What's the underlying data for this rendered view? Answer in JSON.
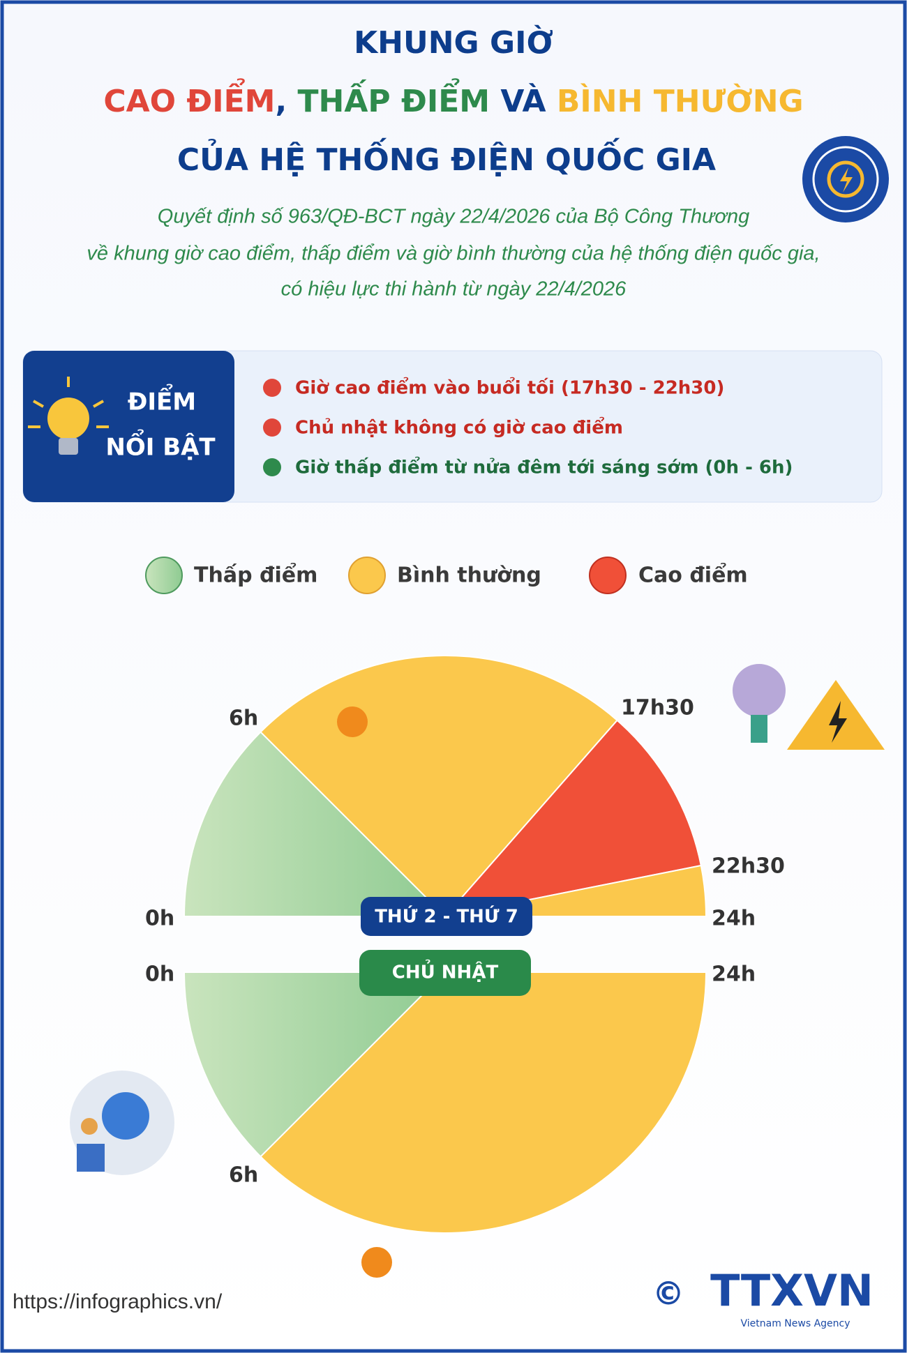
{
  "header": {
    "title_line1": "KHUNG GIỜ",
    "title_line2": [
      "CAO ĐIỂM",
      ", ",
      "THẤP ĐIỂM",
      " VÀ ",
      "BÌNH THƯỜNG"
    ],
    "title_line3": "CỦA HỆ THỐNG ĐIỆN QUỐC GIA",
    "subtitle": [
      "Quyết định số 963/QĐ-BCT ngày 22/4/2026 của Bộ Công Thương",
      "về khung giờ cao điểm, thấp điểm và giờ bình thường của hệ thống điện quốc gia,",
      "có hiệu lực thi hành từ ngày 22/4/2026"
    ]
  },
  "highlights": {
    "label_lines": [
      "ĐIỂM",
      "NỔI BẬT"
    ],
    "items": [
      "Giờ cao điểm vào buổi tối (17h30 - 22h30)",
      "Chủ nhật không có giờ cao điểm",
      "Giờ thấp điểm từ nửa đêm tới sáng sớm (0h - 6h)"
    ]
  },
  "legend": [
    "Thấp điểm",
    "Bình thường",
    "Cao điểm"
  ],
  "weekday_chart": {
    "label": "THỨ 2 - THỨ 7",
    "hour_labels": [
      "0h",
      "6h",
      "17h30",
      "22h30",
      "24h"
    ]
  },
  "sunday_chart": {
    "label": "CHỦ NHẬT",
    "hour_labels": [
      "0h",
      "24h",
      "6h"
    ]
  },
  "footer": {
    "url": "https://infographics.vn/",
    "copyright": "©",
    "logo": "TTXVN",
    "logo_sub": "Vietnam News Agency"
  }
}
